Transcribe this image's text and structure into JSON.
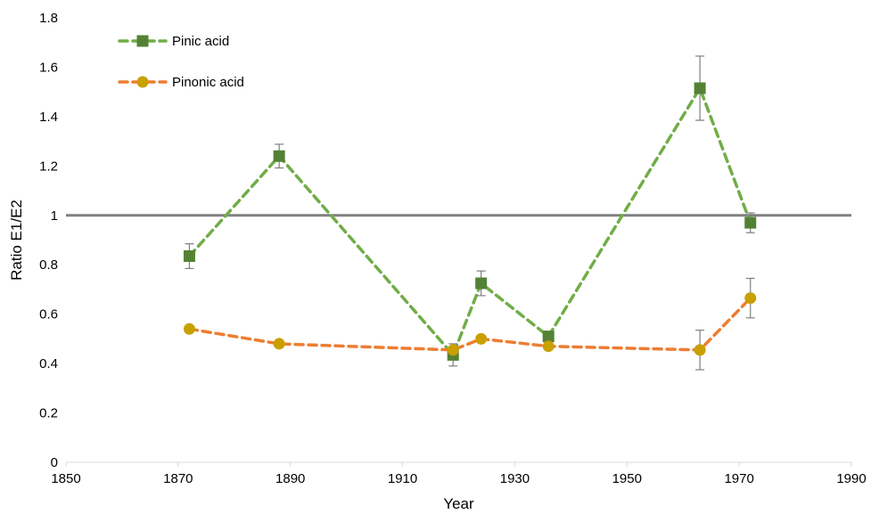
{
  "chart_data": {
    "type": "line",
    "xlabel": "Year",
    "ylabel": "Ratio E1/E2",
    "xlim": [
      1850,
      1990
    ],
    "ylim": [
      0,
      1.8
    ],
    "x_ticks": [
      1850,
      1870,
      1890,
      1910,
      1930,
      1950,
      1970,
      1990
    ],
    "y_ticks": [
      0,
      0.2,
      0.4,
      0.6,
      0.8,
      1,
      1.2,
      1.4,
      1.6,
      1.8
    ],
    "x_tick_labels": [
      "1850",
      "1870",
      "1890",
      "1910",
      "1930",
      "1950",
      "1970",
      "1990"
    ],
    "y_tick_labels": [
      "0",
      "0.2",
      "0.4",
      "0.6",
      "0.8",
      "1",
      "1.2",
      "1.4",
      "1.6",
      "1.8"
    ],
    "reference_line": {
      "y": 1,
      "color": "#808080"
    },
    "grid": false,
    "legend_position": "top-left",
    "series": [
      {
        "name": "Pinic acid",
        "marker": "square",
        "line_style": "dashed",
        "color": "#70AD47",
        "marker_color": "#548235",
        "x": [
          1872,
          1888,
          1919,
          1924,
          1936,
          1963,
          1972
        ],
        "y": [
          0.835,
          1.24,
          0.435,
          0.725,
          0.51,
          1.515,
          0.97
        ],
        "error": [
          0.05,
          0.048,
          0.045,
          0.05,
          0.0,
          0.13,
          0.04
        ]
      },
      {
        "name": "Pinonic acid",
        "marker": "circle",
        "line_style": "dashed",
        "color": "#ED7D31",
        "marker_color": "#C9A000",
        "x": [
          1872,
          1888,
          1919,
          1924,
          1936,
          1963,
          1972
        ],
        "y": [
          0.54,
          0.48,
          0.455,
          0.5,
          0.47,
          0.455,
          0.665
        ],
        "error": [
          0.0,
          0.0,
          0.0,
          0.0,
          0.0,
          0.08,
          0.08
        ]
      }
    ]
  }
}
